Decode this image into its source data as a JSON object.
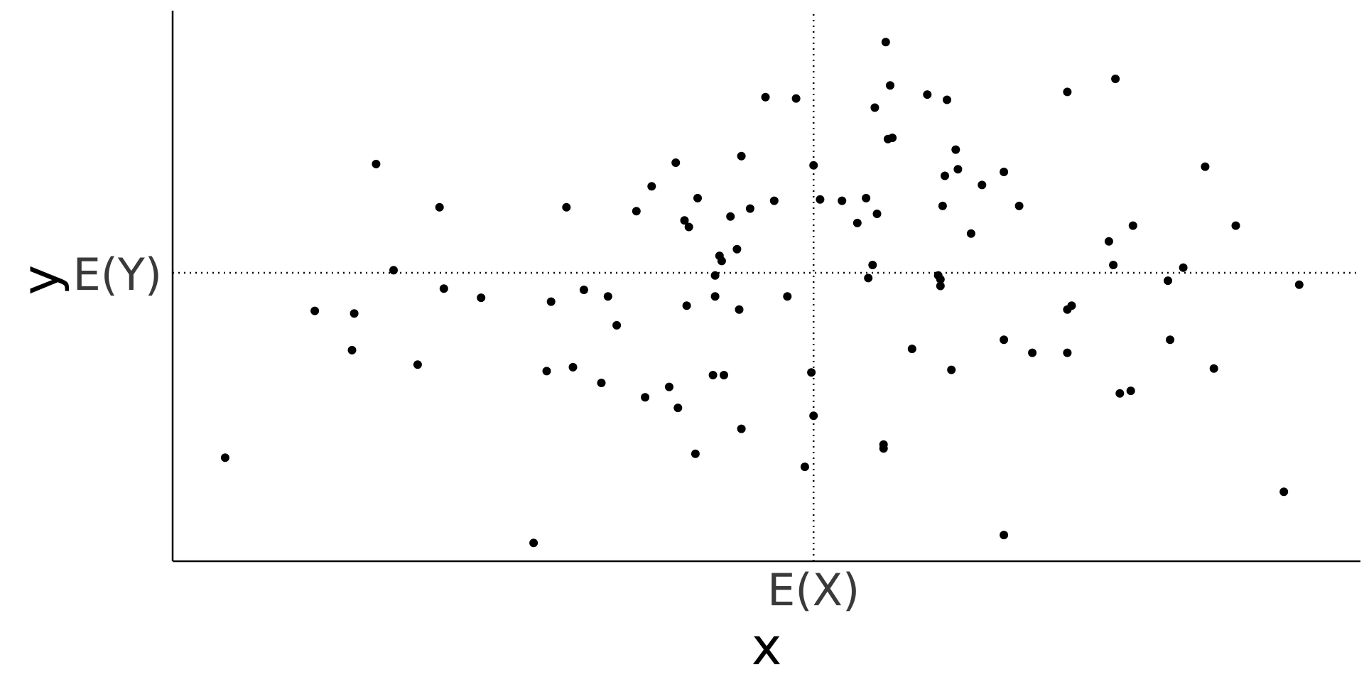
{
  "chart_data": {
    "type": "scatter",
    "xlabel": "x",
    "ylabel": "y",
    "x_reference": {
      "label": "E(X)",
      "value": 0
    },
    "y_reference": {
      "label": "E(Y)",
      "value": 0
    },
    "xlim": [
      -2.93,
      2.5
    ],
    "ylim": [
      -2.2,
      2.0
    ],
    "grid": false,
    "legend": "none",
    "point_color": "#000000",
    "points": [
      [
        -2.69,
        -1.41
      ],
      [
        -2.28,
        -0.29
      ],
      [
        -2.11,
        -0.59
      ],
      [
        -2.1,
        -0.31
      ],
      [
        -2.0,
        0.83
      ],
      [
        -1.92,
        0.02
      ],
      [
        -1.81,
        -0.7
      ],
      [
        -1.71,
        0.5
      ],
      [
        -1.69,
        -0.12
      ],
      [
        -1.52,
        -0.19
      ],
      [
        -1.28,
        -2.06
      ],
      [
        -1.22,
        -0.75
      ],
      [
        -1.2,
        -0.22
      ],
      [
        -1.13,
        0.5
      ],
      [
        -1.1,
        -0.72
      ],
      [
        -1.05,
        -0.13
      ],
      [
        -0.97,
        -0.84
      ],
      [
        -0.94,
        -0.18
      ],
      [
        -0.9,
        -0.4
      ],
      [
        -0.81,
        0.47
      ],
      [
        -0.77,
        -0.95
      ],
      [
        -0.74,
        0.66
      ],
      [
        -0.66,
        -0.87
      ],
      [
        -0.63,
        0.84
      ],
      [
        -0.62,
        -1.03
      ],
      [
        -0.59,
        0.4
      ],
      [
        -0.58,
        -0.25
      ],
      [
        -0.57,
        0.35
      ],
      [
        -0.54,
        -1.38
      ],
      [
        -0.53,
        0.57
      ],
      [
        -0.46,
        -0.78
      ],
      [
        -0.45,
        -0.02
      ],
      [
        -0.45,
        -0.18
      ],
      [
        -0.43,
        0.13
      ],
      [
        -0.42,
        0.09
      ],
      [
        -0.41,
        -0.78
      ],
      [
        -0.38,
        0.43
      ],
      [
        -0.35,
        0.18
      ],
      [
        -0.34,
        -0.28
      ],
      [
        -0.33,
        0.89
      ],
      [
        -0.33,
        -1.19
      ],
      [
        -0.29,
        0.49
      ],
      [
        -0.22,
        1.34
      ],
      [
        -0.18,
        0.55
      ],
      [
        -0.12,
        -0.18
      ],
      [
        -0.08,
        1.33
      ],
      [
        -0.04,
        -1.48
      ],
      [
        -0.01,
        -0.76
      ],
      [
        0.0,
        -1.09
      ],
      [
        0.0,
        0.82
      ],
      [
        0.03,
        0.56
      ],
      [
        0.13,
        0.55
      ],
      [
        0.2,
        0.38
      ],
      [
        0.24,
        0.57
      ],
      [
        0.25,
        -0.04
      ],
      [
        0.27,
        0.06
      ],
      [
        0.28,
        1.26
      ],
      [
        0.29,
        0.45
      ],
      [
        0.32,
        -1.34
      ],
      [
        0.32,
        -1.31
      ],
      [
        0.33,
        1.76
      ],
      [
        0.34,
        1.02
      ],
      [
        0.35,
        1.43
      ],
      [
        0.36,
        1.03
      ],
      [
        0.45,
        -0.58
      ],
      [
        0.52,
        1.36
      ],
      [
        0.57,
        -0.02
      ],
      [
        0.58,
        -0.05
      ],
      [
        0.58,
        -0.1
      ],
      [
        0.59,
        0.51
      ],
      [
        0.6,
        0.74
      ],
      [
        0.61,
        1.32
      ],
      [
        0.63,
        -0.74
      ],
      [
        0.65,
        0.94
      ],
      [
        0.66,
        0.79
      ],
      [
        0.72,
        0.3
      ],
      [
        0.77,
        0.67
      ],
      [
        0.87,
        -2.0
      ],
      [
        0.87,
        -0.51
      ],
      [
        0.87,
        0.77
      ],
      [
        0.94,
        0.51
      ],
      [
        1.0,
        -0.61
      ],
      [
        1.16,
        -0.61
      ],
      [
        1.16,
        -0.28
      ],
      [
        1.18,
        -0.25
      ],
      [
        1.16,
        1.38
      ],
      [
        1.35,
        0.24
      ],
      [
        1.37,
        0.06
      ],
      [
        1.38,
        1.48
      ],
      [
        1.4,
        -0.92
      ],
      [
        1.45,
        -0.9
      ],
      [
        1.46,
        0.36
      ],
      [
        1.62,
        -0.06
      ],
      [
        1.63,
        -0.51
      ],
      [
        1.69,
        0.04
      ],
      [
        1.79,
        0.81
      ],
      [
        1.83,
        -0.73
      ],
      [
        1.93,
        0.36
      ],
      [
        2.15,
        -1.67
      ],
      [
        2.22,
        -0.09
      ]
    ]
  }
}
